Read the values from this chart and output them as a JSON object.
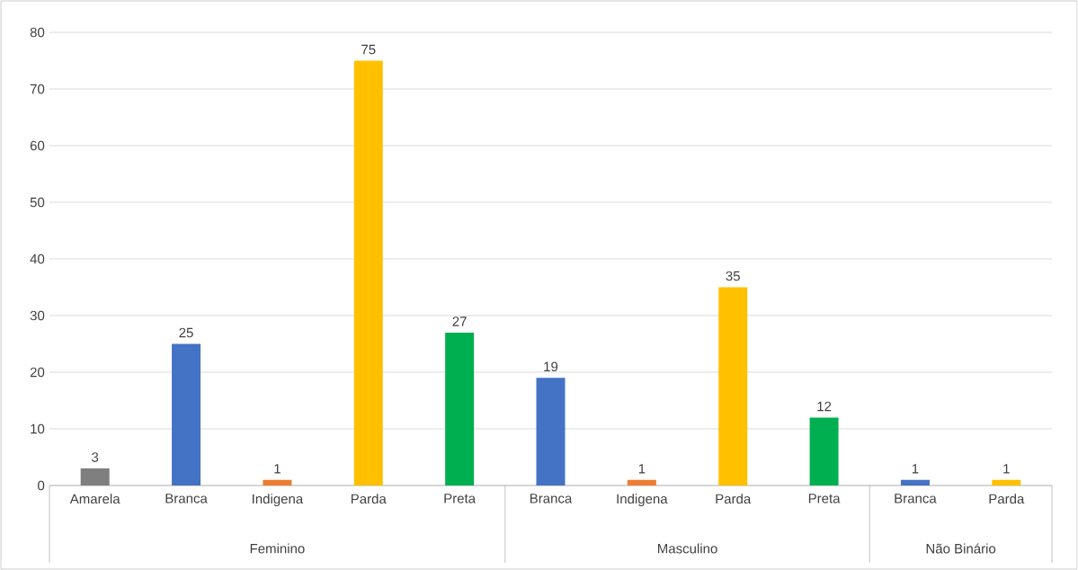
{
  "chart_data": {
    "type": "bar",
    "categories": [
      "Amarela",
      "Branca",
      "Indigena",
      "Parda",
      "Preta",
      "Branca",
      "Indigena",
      "Parda",
      "Preta",
      "Branca",
      "Parda"
    ],
    "values": [
      3,
      25,
      1,
      75,
      27,
      19,
      1,
      35,
      12,
      1,
      1
    ],
    "colors": [
      "#7f7f7f",
      "#4472c4",
      "#ed7d31",
      "#ffc000",
      "#00b050",
      "#4472c4",
      "#ed7d31",
      "#ffc000",
      "#00b050",
      "#4472c4",
      "#ffc000"
    ],
    "annotations": [
      "Feminino",
      "Masculino",
      "Não Binário"
    ],
    "ylim": [
      0,
      80
    ],
    "yticks": [
      0,
      10,
      20,
      30,
      40,
      50,
      60,
      70,
      80
    ],
    "grid": "y",
    "data_labels": true
  }
}
